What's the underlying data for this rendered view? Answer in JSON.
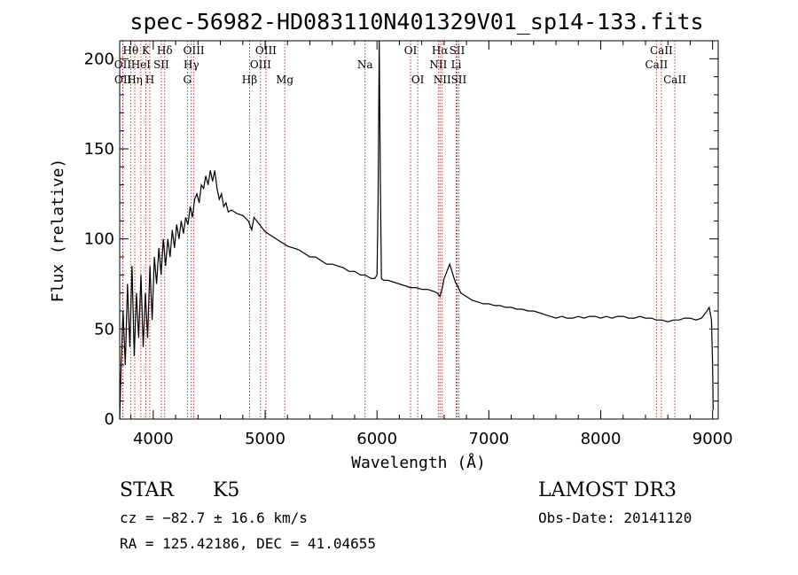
{
  "title": "spec-56982-HD083110N401329V01_sp14-133.fits",
  "info": {
    "class_label": "STAR",
    "subclass": "K5",
    "survey": "LAMOST DR3",
    "cz_text": "cz = −82.7 ± 16.6 km/s",
    "obs_date_text": "Obs-Date: 20141120",
    "coords_text": "RA = 125.42186, DEC =  41.04655"
  },
  "colors": {
    "spectrum": "#000000",
    "line_markers": "#b22222",
    "frame": "#000000"
  },
  "chart_data": {
    "type": "line",
    "title": "spec-56982-HD083110N401329V01_sp14-133.fits",
    "xlabel": "Wavelength (Å)",
    "ylabel": "Flux (relative)",
    "xlim": [
      3700,
      9050
    ],
    "ylim": [
      0,
      210
    ],
    "xticks": [
      4000,
      5000,
      6000,
      7000,
      8000,
      9000
    ],
    "yticks": [
      0,
      50,
      100,
      150,
      200
    ],
    "grid": false,
    "series": [
      {
        "x": [
          3700,
          3710,
          3730,
          3750,
          3770,
          3790,
          3810,
          3830,
          3850,
          3870,
          3890,
          3910,
          3930,
          3950,
          3970,
          3990,
          4010,
          4030,
          4050,
          4070,
          4090,
          4110,
          4130,
          4150,
          4170,
          4190,
          4210,
          4230,
          4250,
          4270,
          4290,
          4310,
          4330,
          4350,
          4370,
          4390,
          4410,
          4430,
          4450,
          4470,
          4490,
          4510,
          4530,
          4550,
          4570,
          4590,
          4610,
          4630,
          4650,
          4670,
          4700,
          4750,
          4800,
          4850,
          4880,
          4900,
          4950,
          5000,
          5050,
          5100,
          5150,
          5200,
          5250,
          5300,
          5350,
          5400,
          5450,
          5500,
          5550,
          5600,
          5650,
          5700,
          5750,
          5800,
          5850,
          5890,
          5920,
          5950,
          5980,
          6000,
          6010,
          6020,
          6030,
          6040,
          6060,
          6100,
          6150,
          6200,
          6250,
          6300,
          6350,
          6400,
          6450,
          6500,
          6540,
          6563,
          6580,
          6600,
          6650,
          6680,
          6700,
          6720,
          6750,
          6800,
          6850,
          6900,
          6950,
          7000,
          7050,
          7100,
          7150,
          7200,
          7250,
          7300,
          7350,
          7400,
          7450,
          7500,
          7550,
          7600,
          7650,
          7700,
          7750,
          7800,
          7850,
          7900,
          7950,
          8000,
          8050,
          8100,
          8150,
          8200,
          8250,
          8300,
          8350,
          8400,
          8450,
          8500,
          8550,
          8600,
          8650,
          8700,
          8750,
          8800,
          8850,
          8900,
          8950,
          8970,
          8990,
          9000,
          9005
        ],
        "y": [
          0,
          25,
          60,
          30,
          75,
          40,
          85,
          35,
          70,
          45,
          80,
          40,
          70,
          45,
          85,
          55,
          90,
          75,
          95,
          80,
          100,
          85,
          100,
          90,
          105,
          95,
          108,
          100,
          110,
          103,
          112,
          108,
          118,
          112,
          122,
          125,
          120,
          130,
          128,
          135,
          130,
          138,
          132,
          138,
          128,
          122,
          125,
          118,
          120,
          115,
          116,
          114,
          113,
          110,
          105,
          112,
          108,
          104,
          102,
          100,
          98,
          96,
          95,
          94,
          92,
          90,
          90,
          88,
          86,
          86,
          85,
          84,
          82,
          82,
          80,
          80,
          79,
          78,
          78,
          80,
          120,
          210,
          130,
          78,
          77,
          77,
          76,
          75,
          74,
          73,
          73,
          72,
          72,
          71,
          70,
          68,
          72,
          78,
          86,
          80,
          76,
          74,
          70,
          68,
          66,
          65,
          64,
          64,
          63,
          63,
          62,
          62,
          61,
          61,
          60,
          60,
          59,
          58,
          57,
          56,
          57,
          56,
          56,
          57,
          56,
          57,
          57,
          56,
          57,
          56,
          57,
          57,
          56,
          56,
          57,
          56,
          56,
          55,
          55,
          54,
          55,
          55,
          56,
          56,
          55,
          56,
          60,
          62,
          55,
          30,
          5
        ]
      }
    ],
    "line_markers": [
      {
        "label": "Hθ",
        "x": 3798,
        "row": 1
      },
      {
        "label": "OII",
        "x": 3727,
        "row": 2
      },
      {
        "label": "OII",
        "x": 3729,
        "row": 3
      },
      {
        "label": "K",
        "x": 3934,
        "row": 1
      },
      {
        "label": "HeI",
        "x": 3889,
        "row": 2
      },
      {
        "label": "Hη",
        "x": 3835,
        "row": 3
      },
      {
        "label": "Hδ",
        "x": 4102,
        "row": 1
      },
      {
        "label": "SII",
        "x": 4072,
        "row": 2
      },
      {
        "label": "H",
        "x": 3969,
        "row": 3
      },
      {
        "label": "OIII",
        "x": 4363,
        "row": 1
      },
      {
        "label": "Hγ",
        "x": 4340,
        "row": 2
      },
      {
        "label": "G",
        "x": 4305,
        "row": 3
      },
      {
        "label": "OIII",
        "x": 5007,
        "row": 1
      },
      {
        "label": "OIII",
        "x": 4959,
        "row": 2
      },
      {
        "label": "Hβ",
        "x": 4861,
        "row": 3
      },
      {
        "label": "Mg",
        "x": 5175,
        "row": 3
      },
      {
        "label": "Na",
        "x": 5893,
        "row": 2
      },
      {
        "label": "OI",
        "x": 6300,
        "row": 1
      },
      {
        "label": "OI",
        "x": 6364,
        "row": 3
      },
      {
        "label": "Hα",
        "x": 6563,
        "row": 1
      },
      {
        "label": "NII",
        "x": 6548,
        "row": 2
      },
      {
        "label": "NII",
        "x": 6583,
        "row": 3
      },
      {
        "label": "SII",
        "x": 6716,
        "row": 1
      },
      {
        "label": "Li",
        "x": 6708,
        "row": 2
      },
      {
        "label": "SII",
        "x": 6731,
        "row": 3
      },
      {
        "label": "CaII",
        "x": 8542,
        "row": 1
      },
      {
        "label": "CaII",
        "x": 8498,
        "row": 2
      },
      {
        "label": "CaII",
        "x": 8662,
        "row": 3
      }
    ]
  }
}
